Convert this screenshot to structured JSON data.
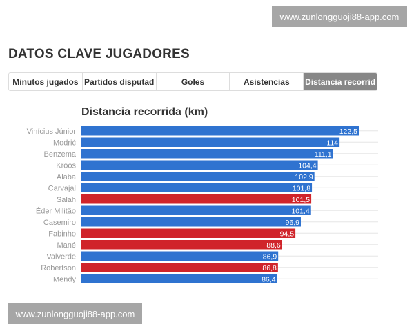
{
  "watermark": "www.zunlongguoji88-app.com",
  "page_title": "DATOS CLAVE JUGADORES",
  "tabs": [
    {
      "label": "Minutos jugados",
      "active": false
    },
    {
      "label": "Partidos disputad",
      "active": false
    },
    {
      "label": "Goles",
      "active": false
    },
    {
      "label": "Asistencias",
      "active": false
    },
    {
      "label": "Distancia recorrid",
      "active": true
    }
  ],
  "chart_data": {
    "type": "bar",
    "orientation": "horizontal",
    "title": "Distancia recorrida (km)",
    "categories": [
      "Vinícius Júnior",
      "Modrić",
      "Benzema",
      "Kroos",
      "Alaba",
      "Carvajal",
      "Salah",
      "Éder Militão",
      "Casemiro",
      "Fabinho",
      "Mané",
      "Valverde",
      "Robertson",
      "Mendy"
    ],
    "values": [
      122.5,
      114,
      111.1,
      104.4,
      102.9,
      101.8,
      101.5,
      101.4,
      96.9,
      94.5,
      88.6,
      86.9,
      86.8,
      86.4
    ],
    "labels": [
      "122,5",
      "114",
      "111,1",
      "104,4",
      "102,9",
      "101,8",
      "101,5",
      "101,4",
      "96,9",
      "94,5",
      "88,6",
      "86,9",
      "86,8",
      "86,4"
    ],
    "colors": [
      "#2f73d0",
      "#2f73d0",
      "#2f73d0",
      "#2f73d0",
      "#2f73d0",
      "#2f73d0",
      "#d0242a",
      "#2f73d0",
      "#2f73d0",
      "#d0242a",
      "#d0242a",
      "#2f73d0",
      "#d0242a",
      "#2f73d0"
    ],
    "xlim": [
      0,
      122.5
    ],
    "grid": true
  }
}
